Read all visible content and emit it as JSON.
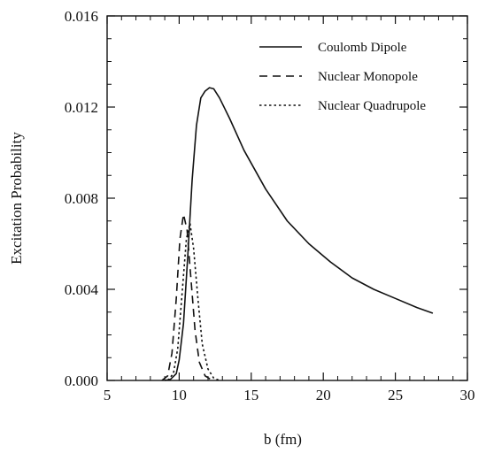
{
  "chart_data": {
    "type": "line",
    "title": "",
    "xlabel": "b (fm)",
    "ylabel": "Excitation Probability",
    "xlim": [
      5,
      30
    ],
    "ylim": [
      0.0,
      0.016
    ],
    "x_ticks": [
      5,
      10,
      15,
      20,
      25,
      30
    ],
    "x_tick_labels": [
      "5",
      "10",
      "15",
      "20",
      "25",
      "30"
    ],
    "y_ticks": [
      0.0,
      0.004,
      0.008,
      0.012,
      0.016
    ],
    "y_tick_labels": [
      "0.000",
      "0.004",
      "0.008",
      "0.012",
      "0.016"
    ],
    "legend_position": "top-right",
    "grid": false,
    "series": [
      {
        "name": "Coulomb Dipole",
        "style": "solid",
        "color": "#111111",
        "points": [
          [
            9.0,
            0.0
          ],
          [
            9.4,
            5e-05
          ],
          [
            9.8,
            0.0003
          ],
          [
            10.0,
            0.0009
          ],
          [
            10.3,
            0.0025
          ],
          [
            10.6,
            0.0055
          ],
          [
            10.9,
            0.0088
          ],
          [
            11.2,
            0.0112
          ],
          [
            11.5,
            0.0124
          ],
          [
            11.8,
            0.0127
          ],
          [
            12.1,
            0.01285
          ],
          [
            12.4,
            0.0128
          ],
          [
            12.8,
            0.0124
          ],
          [
            13.5,
            0.0115
          ],
          [
            14.5,
            0.0101
          ],
          [
            16.0,
            0.0084
          ],
          [
            17.5,
            0.007
          ],
          [
            19.0,
            0.006
          ],
          [
            20.5,
            0.0052
          ],
          [
            22.0,
            0.0045
          ],
          [
            23.5,
            0.004
          ],
          [
            25.0,
            0.0036
          ],
          [
            26.5,
            0.0032
          ],
          [
            27.6,
            0.00295
          ]
        ]
      },
      {
        "name": "Nuclear Monopole",
        "style": "dashed",
        "color": "#111111",
        "points": [
          [
            8.8,
            0.0
          ],
          [
            9.2,
            0.0002
          ],
          [
            9.5,
            0.0012
          ],
          [
            9.8,
            0.0036
          ],
          [
            10.05,
            0.0062
          ],
          [
            10.3,
            0.0073
          ],
          [
            10.55,
            0.0066
          ],
          [
            10.8,
            0.0046
          ],
          [
            11.1,
            0.0022
          ],
          [
            11.4,
            0.0008
          ],
          [
            11.8,
            0.0002
          ],
          [
            12.3,
            0.0
          ]
        ]
      },
      {
        "name": "Nuclear Quadrupole",
        "style": "dotted",
        "color": "#111111",
        "points": [
          [
            9.2,
            0.0
          ],
          [
            9.6,
            0.0003
          ],
          [
            9.9,
            0.0014
          ],
          [
            10.2,
            0.0038
          ],
          [
            10.5,
            0.0062
          ],
          [
            10.75,
            0.0069
          ],
          [
            11.0,
            0.0058
          ],
          [
            11.3,
            0.0036
          ],
          [
            11.6,
            0.0016
          ],
          [
            12.0,
            0.0005
          ],
          [
            12.4,
            0.0001
          ],
          [
            12.8,
            0.0
          ]
        ]
      }
    ]
  }
}
